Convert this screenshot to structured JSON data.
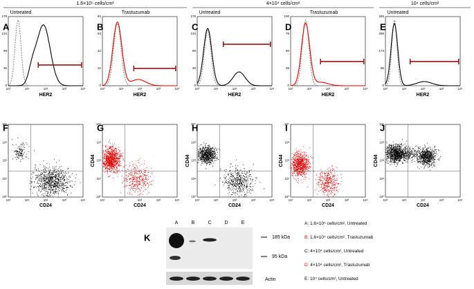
{
  "headers": [
    {
      "text": "1.6×10⁵ cells/cm²"
    },
    {
      "text": "4×10⁴ cells/cm²"
    },
    {
      "text": "10⁴ cells/cm²"
    }
  ],
  "conditions": [
    {
      "text": "Untreated",
      "color": "#000000"
    },
    {
      "text": "Trastuzumab",
      "color": "#e00000"
    },
    {
      "text": "Untreated",
      "color": "#000000"
    },
    {
      "text": "Trastuzumab",
      "color": "#e00000"
    },
    {
      "text": "Untreated",
      "color": "#000000"
    }
  ],
  "xticks": [
    "10⁰",
    "10¹",
    "10²",
    "10³",
    "10⁴"
  ],
  "histograms": [
    {
      "letter": "A",
      "yticks": [
        "0",
        "45",
        "89",
        "134",
        "178"
      ],
      "xlabel": "HER2"
    },
    {
      "letter": "B",
      "yticks": [
        "0",
        "21",
        "42",
        "63",
        "84"
      ],
      "xlabel": "HER2"
    },
    {
      "letter": "C",
      "yticks": [
        "0",
        "45",
        "89",
        "134",
        "178"
      ],
      "xlabel": "HER2"
    },
    {
      "letter": "D",
      "yticks": [
        "0",
        "25",
        "50",
        "75",
        "100"
      ],
      "xlabel": "HER2"
    },
    {
      "letter": "E",
      "yticks": [
        "0",
        "86",
        "173",
        "259",
        "346"
      ],
      "xlabel": "HER2"
    }
  ],
  "dotplots": [
    {
      "letter": "F",
      "ylabel": "CD44",
      "xlabel": "CD24"
    },
    {
      "letter": "G",
      "ylabel": "CD44",
      "xlabel": "CD24"
    },
    {
      "letter": "H",
      "ylabel": "CD44",
      "xlabel": "CD24"
    },
    {
      "letter": "I",
      "ylabel": "CD44",
      "xlabel": "CD24"
    },
    {
      "letter": "J",
      "ylabel": "CD44",
      "xlabel": "CD24"
    }
  ],
  "blot": {
    "letter": "K",
    "lanes": [
      "A",
      "B",
      "C",
      "D",
      "E"
    ],
    "markers": [
      "185 kDa",
      "95 kDa"
    ],
    "loading": "Actin"
  },
  "legend": [
    {
      "key": "A:",
      "text": " 1.6×10⁵ cells/cm², Untreated"
    },
    {
      "key": "B:",
      "text": " 1.6×10⁵ cells/cm², Trastuzumab"
    },
    {
      "key": "C:",
      "text": " 4×10⁴ cells/cm², Untreated"
    },
    {
      "key": "D:",
      "text": " 4×10⁴ cells/cm², Trastuzumab"
    },
    {
      "key": "E:",
      "text": " 10⁴ cells/cm², Untreated"
    }
  ]
}
